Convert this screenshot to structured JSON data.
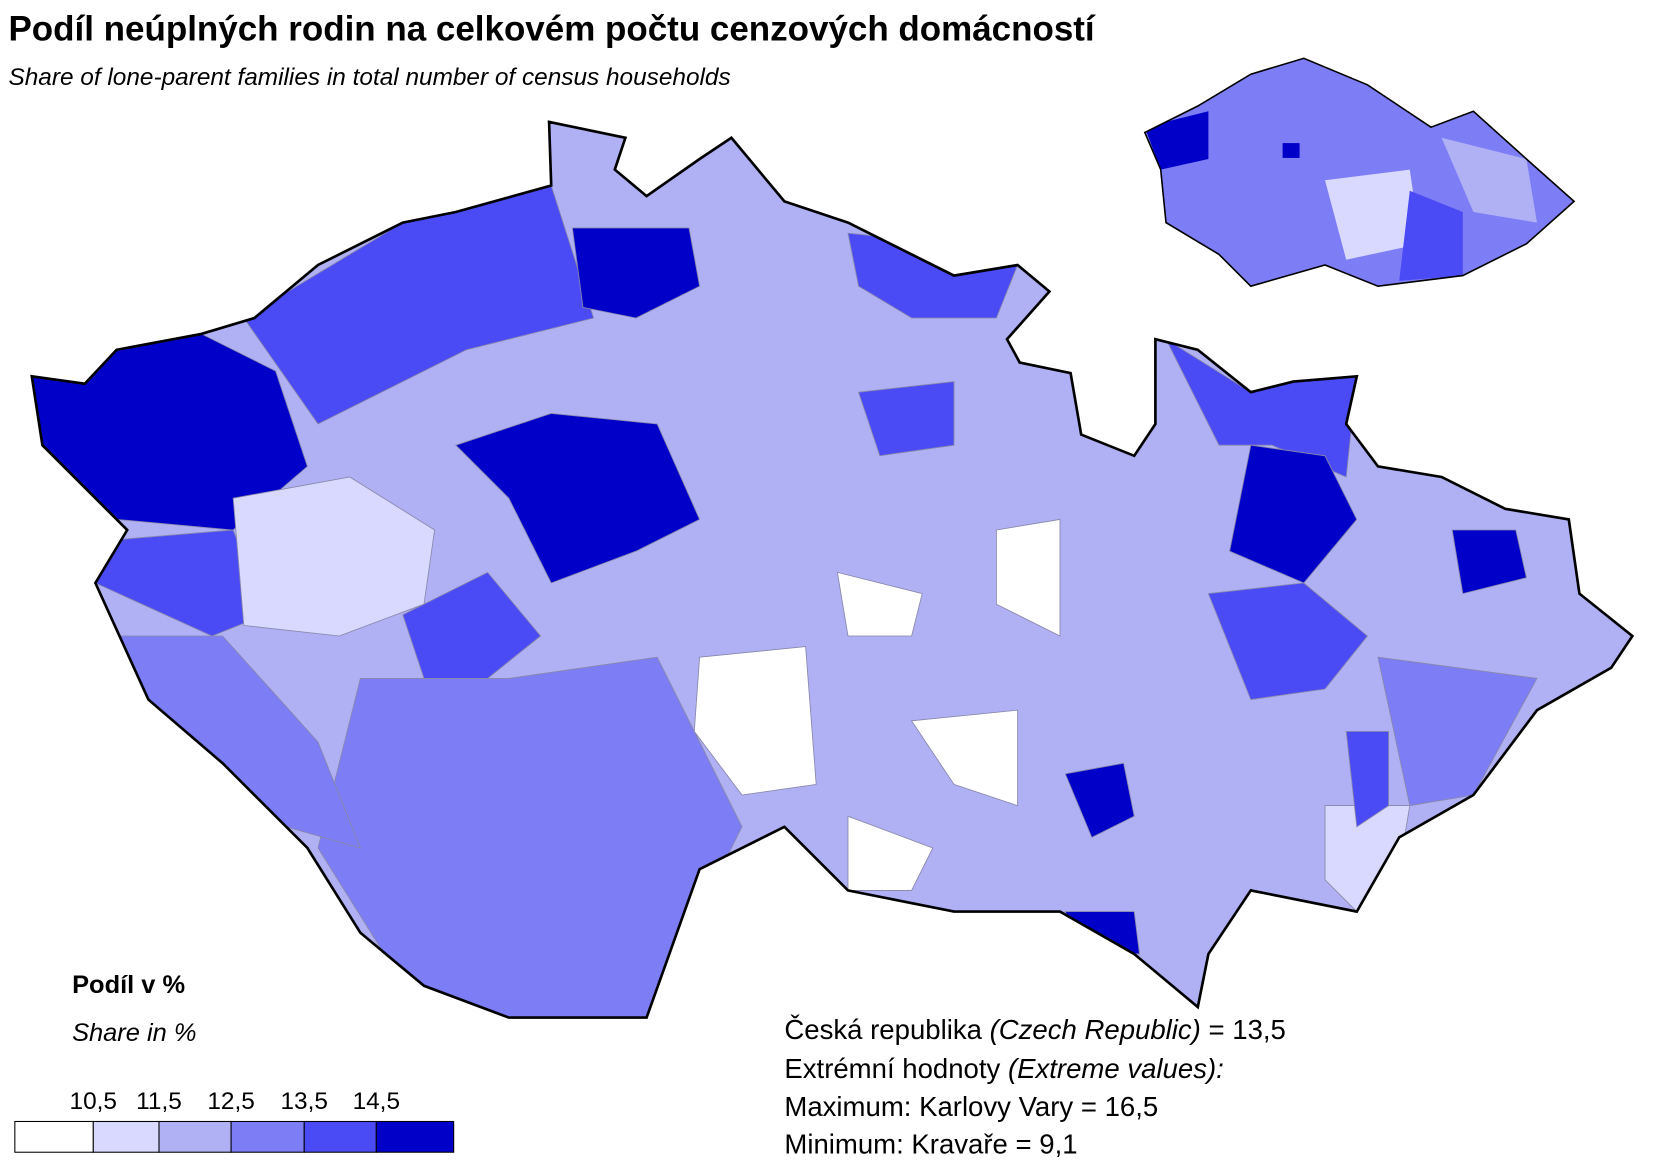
{
  "title": "Podíl neúplných rodin na celkovém počtu cenzových domácností",
  "subtitle": "Share of lone-parent families in total number of census households",
  "legend": {
    "title": "Podíl v %",
    "subtitle": "Share in %",
    "colors": [
      "#ffffff",
      "#d9d9ff",
      "#b0b0f5",
      "#7d7df5",
      "#4b4bf5",
      "#0000c8"
    ],
    "breaks": [
      {
        "value": 10.5,
        "label": "10,5"
      },
      {
        "value": 11.5,
        "label": "11,5"
      },
      {
        "value": 12.5,
        "label": "12,5"
      },
      {
        "value": 13.5,
        "label": "13,5"
      },
      {
        "value": 14.5,
        "label": "14,5"
      }
    ]
  },
  "stats": {
    "national": [
      "Česká republika",
      "(Czech Republic)",
      "= 13,5"
    ],
    "extremes": [
      "Extrémní hodnoty",
      "(Extreme values):"
    ],
    "maximum": "Maximum: Karlovy Vary = 16,5",
    "minimum": "Minimum: Kravaře = 9,1"
  }
}
